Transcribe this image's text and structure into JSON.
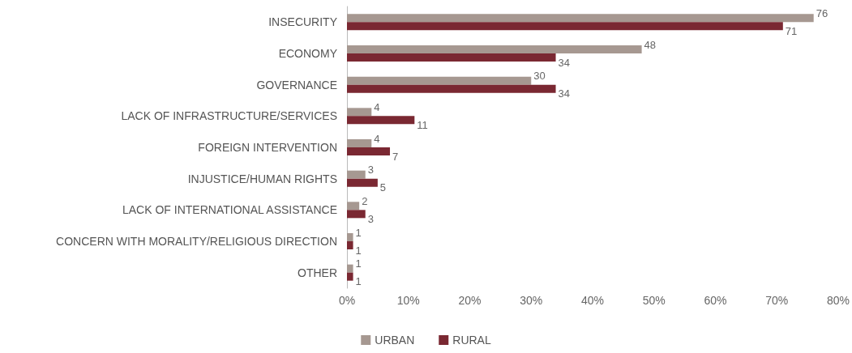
{
  "chart_data": {
    "type": "bar",
    "orientation": "horizontal",
    "categories": [
      "INSECURITY",
      "ECONOMY",
      "GOVERNANCE",
      "LACK OF INFRASTRUCTURE/SERVICES",
      "FOREIGN INTERVENTION",
      "INJUSTICE/HUMAN RIGHTS",
      "LACK OF INTERNATIONAL ASSISTANCE",
      "CONCERN WITH MORALITY/RELIGIOUS DIRECTION",
      "OTHER"
    ],
    "series": [
      {
        "name": "URBAN",
        "color": "#a69891",
        "values": [
          76,
          48,
          30,
          4,
          4,
          3,
          2,
          1,
          1
        ]
      },
      {
        "name": "RURAL",
        "color": "#7a2832",
        "values": [
          71,
          34,
          34,
          11,
          7,
          5,
          3,
          1,
          1
        ]
      }
    ],
    "xlim": [
      0,
      80
    ],
    "xticks": [
      {
        "value": 0,
        "label": "0%"
      },
      {
        "value": 10,
        "label": "10%"
      },
      {
        "value": 20,
        "label": "20%"
      },
      {
        "value": 30,
        "label": "30%"
      },
      {
        "value": 40,
        "label": "40%"
      },
      {
        "value": 50,
        "label": "50%"
      },
      {
        "value": 60,
        "label": "60%"
      },
      {
        "value": 70,
        "label": "70%"
      },
      {
        "value": 80,
        "label": "80%"
      }
    ],
    "data_labels": true,
    "grid": false,
    "legend": "bottom"
  }
}
